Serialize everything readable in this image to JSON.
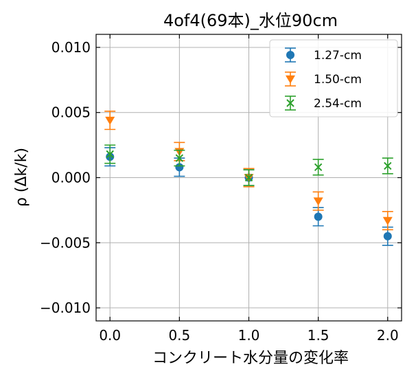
{
  "chart_data": {
    "type": "scatter",
    "title": "4of4(69本)_水位90cm",
    "xlabel": "コンクリート水分量の変化率",
    "ylabel": "ρ (Δk/k)",
    "xlim": [
      -0.1,
      2.1
    ],
    "ylim": [
      -0.011,
      0.011
    ],
    "x_ticks": [
      0.0,
      0.5,
      1.0,
      1.5,
      2.0
    ],
    "x_tick_labels": [
      "0.0",
      "0.5",
      "1.0",
      "1.5",
      "2.0"
    ],
    "y_ticks": [
      0.01,
      0.005,
      0.0,
      -0.005,
      -0.01
    ],
    "y_tick_labels": [
      "0.010",
      "0.005",
      "0.000",
      "−0.005",
      "−0.010"
    ],
    "grid": true,
    "legend_position": "top-right",
    "series": [
      {
        "name": "1.27-cm",
        "color": "#1f77b4",
        "marker": "circle",
        "x": [
          0.0,
          0.5,
          1.0,
          1.5,
          2.0
        ],
        "y": [
          0.0016,
          0.0008,
          0.0,
          -0.003,
          -0.0045
        ],
        "yerr": [
          0.0007,
          0.0007,
          0.0006,
          0.0007,
          0.0007
        ]
      },
      {
        "name": "1.50-cm",
        "color": "#ff7f0e",
        "marker": "triangle-down",
        "x": [
          0.0,
          0.5,
          1.0,
          1.5,
          2.0
        ],
        "y": [
          0.0044,
          0.002,
          0.0,
          -0.0018,
          -0.0033
        ],
        "yerr": [
          0.0007,
          0.0007,
          0.0007,
          0.0007,
          0.0007
        ]
      },
      {
        "name": "2.54-cm",
        "color": "#2ca02c",
        "marker": "x",
        "x": [
          0.0,
          0.5,
          1.0,
          1.5,
          2.0
        ],
        "y": [
          0.0018,
          0.0015,
          0.0,
          0.0008,
          0.0009
        ],
        "yerr": [
          0.0007,
          0.0006,
          0.0006,
          0.0006,
          0.0006
        ]
      }
    ]
  }
}
